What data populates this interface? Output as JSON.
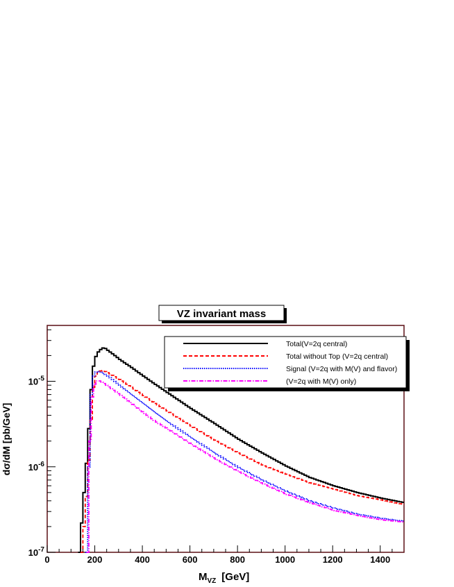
{
  "chart_data": {
    "type": "line",
    "title": "VZ invariant mass",
    "xlabel_main": "M",
    "xlabel_sub": "VZ",
    "xlabel_unit": "[GeV]",
    "ylabel": "dσ/dM  [pb/GeV]",
    "xlim": [
      0,
      1500
    ],
    "ylim": [
      1e-07,
      4.5e-05
    ],
    "y_scale": "log",
    "legend_position": "top-right",
    "x_ticks": [
      0,
      200,
      400,
      600,
      800,
      1000,
      1200,
      1400
    ],
    "y_ticks": [
      {
        "value": 1e-07,
        "base": "10",
        "exp": "-7"
      },
      {
        "value": 1e-06,
        "base": "10",
        "exp": "-6"
      },
      {
        "value": 1e-05,
        "base": "10",
        "exp": "-5"
      }
    ],
    "colors": {
      "frame": "#5a0f14",
      "shadow": "#000000"
    },
    "series": [
      {
        "name": "Total(V=2q central)",
        "color": "#000000",
        "dash": "solid",
        "x": [
          130,
          140,
          150,
          160,
          170,
          180,
          190,
          200,
          210,
          220,
          230,
          240,
          250,
          275,
          300,
          350,
          400,
          450,
          500,
          600,
          700,
          800,
          900,
          1000,
          1100,
          1200,
          1300,
          1400,
          1500
        ],
        "y": [
          1e-07,
          2.2e-07,
          5e-07,
          1.1e-06,
          2.8e-06,
          8e-06,
          1.5e-05,
          1.95e-05,
          2.2e-05,
          2.35e-05,
          2.45e-05,
          2.42e-05,
          2.3e-05,
          2.05e-05,
          1.8e-05,
          1.45e-05,
          1.15e-05,
          9.2e-06,
          7.4e-06,
          4.8e-06,
          3.2e-06,
          2.1e-06,
          1.45e-06,
          1.02e-06,
          7.5e-07,
          6e-07,
          5e-07,
          4.3e-07,
          3.8e-07
        ]
      },
      {
        "name": "Total without Top (V=2q central)",
        "color": "#ff0000",
        "dash": "dashed",
        "x": [
          140,
          150,
          160,
          170,
          180,
          190,
          200,
          210,
          220,
          230,
          240,
          260,
          300,
          350,
          400,
          450,
          500,
          600,
          700,
          800,
          900,
          1000,
          1100,
          1200,
          1300,
          1400,
          1500
        ],
        "y": [
          1e-07,
          2e-07,
          4.5e-07,
          1.2e-06,
          3.5e-06,
          8.5e-06,
          1.15e-05,
          1.28e-05,
          1.32e-05,
          1.33e-05,
          1.3e-05,
          1.22e-05,
          1.05e-05,
          8.5e-06,
          6.8e-06,
          5.5e-06,
          4.5e-06,
          3e-06,
          2.05e-06,
          1.45e-06,
          1.05e-06,
          8.2e-07,
          6.5e-07,
          5.5e-07,
          4.6e-07,
          4.1e-07,
          3.6e-07
        ]
      },
      {
        "name": "Signal (V=2q with M(V) and flavor)",
        "color": "#0000ff",
        "dash": "dotted",
        "x": [
          160,
          165,
          170,
          175,
          180,
          190,
          200,
          210,
          220,
          230,
          240,
          260,
          300,
          350,
          400,
          450,
          500,
          600,
          700,
          800,
          900,
          1000,
          1100,
          1200,
          1300,
          1400,
          1500
        ],
        "y": [
          1e-07,
          3e-07,
          1e-06,
          3e-06,
          7e-06,
          1.15e-05,
          1.28e-05,
          1.3e-05,
          1.28e-05,
          1.24e-05,
          1.2e-05,
          1.1e-05,
          9e-06,
          7e-06,
          5.5e-06,
          4.3e-06,
          3.4e-06,
          2.2e-06,
          1.45e-06,
          9.8e-07,
          7e-07,
          5.2e-07,
          4e-07,
          3.3e-07,
          2.8e-07,
          2.5e-07,
          2.3e-07
        ]
      },
      {
        "name": "(V=2q with M(V) only)",
        "color": "#ff00ff",
        "dash": "dashdot",
        "x": [
          165,
          170,
          175,
          180,
          190,
          200,
          210,
          220,
          230,
          240,
          260,
          300,
          350,
          400,
          450,
          500,
          600,
          700,
          800,
          900,
          1000,
          1100,
          1200,
          1300,
          1400,
          1500
        ],
        "y": [
          1e-07,
          5e-07,
          2e-06,
          5e-06,
          8.5e-06,
          1e-05,
          1.02e-05,
          1e-05,
          9.6e-06,
          9.2e-06,
          8.4e-06,
          7e-06,
          5.5e-06,
          4.3e-06,
          3.4e-06,
          2.8e-06,
          1.85e-06,
          1.25e-06,
          8.8e-07,
          6.4e-07,
          4.8e-07,
          3.8e-07,
          3.1e-07,
          2.7e-07,
          2.4e-07,
          2.25e-07
        ]
      }
    ]
  }
}
